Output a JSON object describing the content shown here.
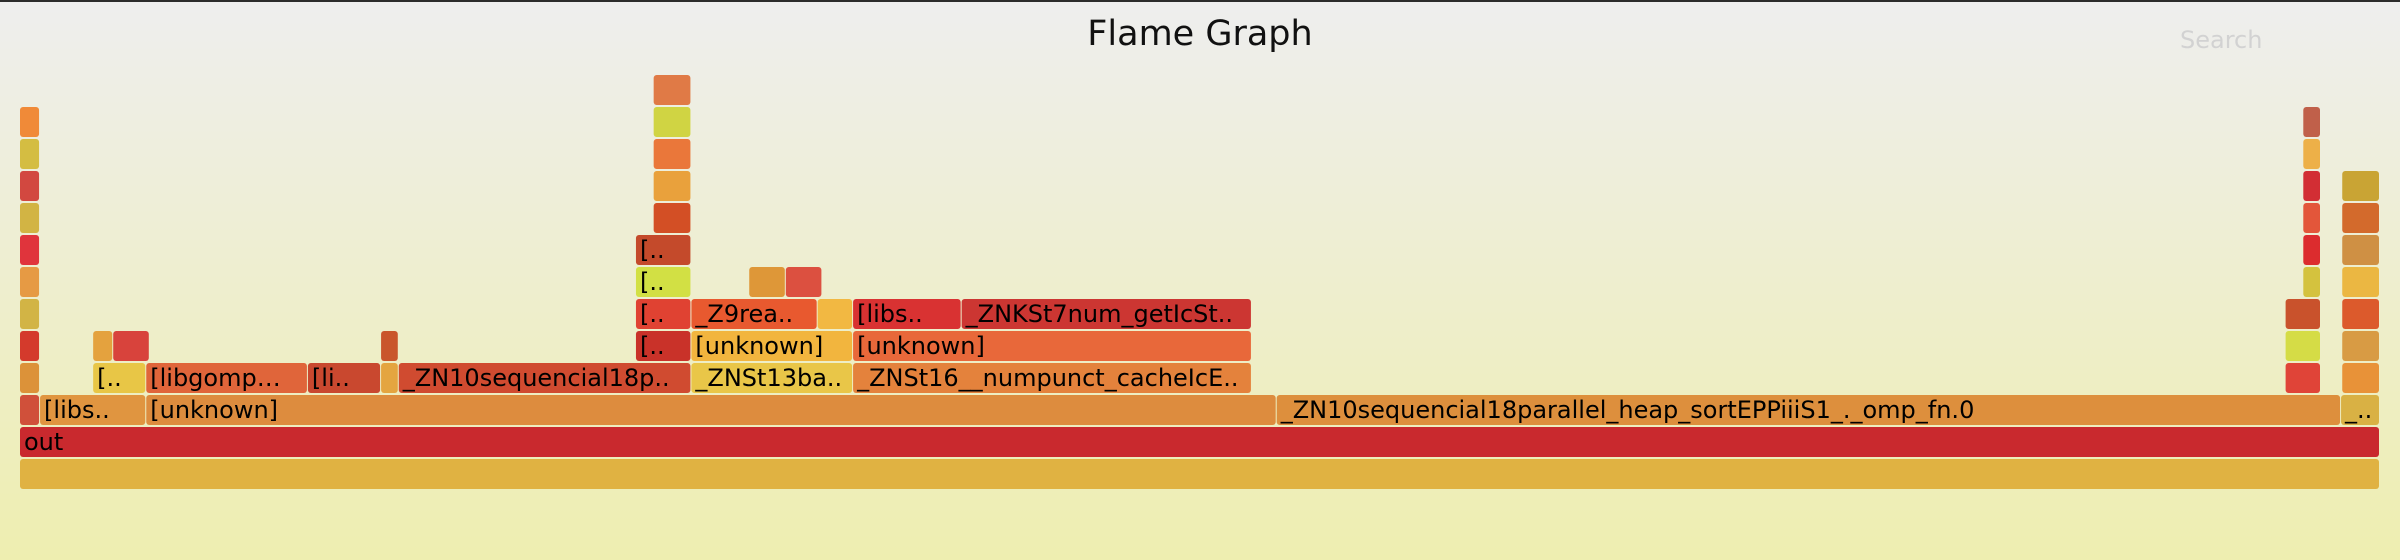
{
  "title": "Flame Graph",
  "search_label": "Search",
  "chart_data": {
    "type": "flame",
    "frames": [
      {
        "label": "",
        "depth": 0,
        "start": 0,
        "width": 100,
        "color": "#e0b242"
      },
      {
        "label": "out",
        "depth": 1,
        "start": 0,
        "width": 100,
        "color": "#c9292e"
      },
      {
        "label": "",
        "depth": 2,
        "start": 0,
        "width": 0.85,
        "color": "#d0503a"
      },
      {
        "label": "[libs..",
        "depth": 2,
        "start": 0.85,
        "width": 4.5,
        "color": "#e09540"
      },
      {
        "label": "[unknown]",
        "depth": 2,
        "start": 5.35,
        "width": 47.9,
        "color": "#dd8c3e"
      },
      {
        "label": "_ZN10sequencial18parallel_heap_sortEPPiiiS1_._omp_fn.0",
        "depth": 2,
        "start": 53.25,
        "width": 45.1,
        "color": "#dd8f3d"
      },
      {
        "label": "_..",
        "depth": 2,
        "start": 98.35,
        "width": 1.65,
        "color": "#d9b144"
      },
      {
        "label": "",
        "depth": 3,
        "start": 0,
        "width": 0.85,
        "color": "#dc9239"
      },
      {
        "label": "[..",
        "depth": 3,
        "start": 3.1,
        "width": 2.25,
        "color": "#e8c646"
      },
      {
        "label": "[libgomp…",
        "depth": 3,
        "start": 5.35,
        "width": 6.85,
        "color": "#e0653a"
      },
      {
        "label": "[li..",
        "depth": 3,
        "start": 12.2,
        "width": 3.1,
        "color": "#c9482f"
      },
      {
        "label": "",
        "depth": 3,
        "start": 15.3,
        "width": 0.75,
        "color": "#e4a540"
      },
      {
        "label": "_ZN10sequencial18p..",
        "depth": 3,
        "start": 16.05,
        "width": 12.4,
        "color": "#d04b30"
      },
      {
        "label": "_ZNSt13ba..",
        "depth": 3,
        "start": 28.45,
        "width": 6.85,
        "color": "#e9c648"
      },
      {
        "label": "_ZNSt16__numpunct_cacheIcE..",
        "depth": 3,
        "start": 35.3,
        "width": 16.9,
        "color": "#e4823c"
      },
      {
        "label": "",
        "depth": 3,
        "start": 96.0,
        "width": 1.5,
        "color": "#e04438"
      },
      {
        "label": "",
        "depth": 3,
        "start": 98.4,
        "width": 1.6,
        "color": "#e89238"
      },
      {
        "label": "",
        "depth": 4,
        "start": 0,
        "width": 0.85,
        "color": "#d43a2c"
      },
      {
        "label": "",
        "depth": 4,
        "start": 3.1,
        "width": 0.85,
        "color": "#e4a23e"
      },
      {
        "label": "",
        "depth": 4,
        "start": 3.95,
        "width": 1.55,
        "color": "#d8433c"
      },
      {
        "label": "",
        "depth": 4,
        "start": 15.3,
        "width": 0.75,
        "color": "#c9562c"
      },
      {
        "label": "[..",
        "depth": 4,
        "start": 26.1,
        "width": 2.35,
        "color": "#c93229"
      },
      {
        "label": "[unknown]",
        "depth": 4,
        "start": 28.45,
        "width": 6.85,
        "color": "#f2b53e"
      },
      {
        "label": "[unknown]",
        "depth": 4,
        "start": 35.3,
        "width": 16.9,
        "color": "#e8683a"
      },
      {
        "label": "",
        "depth": 4,
        "start": 96.0,
        "width": 1.5,
        "color": "#d5dc46"
      },
      {
        "label": "",
        "depth": 4,
        "start": 98.4,
        "width": 1.6,
        "color": "#d89b44"
      },
      {
        "label": "",
        "depth": 5,
        "start": 0,
        "width": 0.85,
        "color": "#d2b445"
      },
      {
        "label": "[..",
        "depth": 5,
        "start": 26.1,
        "width": 2.35,
        "color": "#e04232"
      },
      {
        "label": "_Z9rea..",
        "depth": 5,
        "start": 28.45,
        "width": 5.35,
        "color": "#e8592f"
      },
      {
        "label": "",
        "depth": 5,
        "start": 33.8,
        "width": 1.5,
        "color": "#f2b842"
      },
      {
        "label": "[libs..",
        "depth": 5,
        "start": 35.3,
        "width": 4.6,
        "color": "#d93232"
      },
      {
        "label": "_ZNKSt7num_getIcSt..",
        "depth": 5,
        "start": 39.9,
        "width": 12.3,
        "color": "#cc3632"
      },
      {
        "label": "",
        "depth": 5,
        "start": 96.0,
        "width": 1.5,
        "color": "#c9522c"
      },
      {
        "label": "",
        "depth": 5,
        "start": 98.4,
        "width": 1.6,
        "color": "#dc5a2c"
      },
      {
        "label": "",
        "depth": 6,
        "start": 0,
        "width": 0.85,
        "color": "#e69a44"
      },
      {
        "label": "[..",
        "depth": 6,
        "start": 26.1,
        "width": 2.35,
        "color": "#d2e044"
      },
      {
        "label": "",
        "depth": 6,
        "start": 30.9,
        "width": 1.55,
        "color": "#de9738"
      },
      {
        "label": "",
        "depth": 6,
        "start": 32.45,
        "width": 1.55,
        "color": "#dc5040"
      },
      {
        "label": "",
        "depth": 6,
        "start": 96.75,
        "width": 0.75,
        "color": "#d4c23e"
      },
      {
        "label": "",
        "depth": 6,
        "start": 98.4,
        "width": 1.6,
        "color": "#ebb742"
      },
      {
        "label": "",
        "depth": 7,
        "start": 0,
        "width": 0.85,
        "color": "#e0343c"
      },
      {
        "label": "[..",
        "depth": 7,
        "start": 26.1,
        "width": 2.35,
        "color": "#c44a2b"
      },
      {
        "label": "",
        "depth": 7,
        "start": 96.75,
        "width": 0.75,
        "color": "#dc2c2e"
      },
      {
        "label": "",
        "depth": 7,
        "start": 98.4,
        "width": 1.6,
        "color": "#cf9044"
      },
      {
        "label": "",
        "depth": 8,
        "start": 0,
        "width": 0.85,
        "color": "#d2b444"
      },
      {
        "label": "",
        "depth": 8,
        "start": 26.85,
        "width": 1.6,
        "color": "#d34f25"
      },
      {
        "label": "",
        "depth": 8,
        "start": 96.75,
        "width": 0.75,
        "color": "#e3563a"
      },
      {
        "label": "",
        "depth": 8,
        "start": 98.4,
        "width": 1.6,
        "color": "#d36a2c"
      },
      {
        "label": "",
        "depth": 9,
        "start": 0,
        "width": 0.85,
        "color": "#d24840"
      },
      {
        "label": "",
        "depth": 9,
        "start": 26.85,
        "width": 1.6,
        "color": "#e9a13c"
      },
      {
        "label": "",
        "depth": 9,
        "start": 96.75,
        "width": 0.75,
        "color": "#d22e34"
      },
      {
        "label": "",
        "depth": 9,
        "start": 98.4,
        "width": 1.6,
        "color": "#c9a434"
      },
      {
        "label": "",
        "depth": 10,
        "start": 0,
        "width": 0.85,
        "color": "#d4bd42"
      },
      {
        "label": "",
        "depth": 10,
        "start": 26.85,
        "width": 1.6,
        "color": "#ea773a"
      },
      {
        "label": "",
        "depth": 10,
        "start": 96.75,
        "width": 0.75,
        "color": "#edb048"
      },
      {
        "label": "",
        "depth": 11,
        "start": 0,
        "width": 0.85,
        "color": "#f08a38"
      },
      {
        "label": "",
        "depth": 11,
        "start": 26.85,
        "width": 1.6,
        "color": "#d0d443"
      },
      {
        "label": "",
        "depth": 11,
        "start": 96.75,
        "width": 0.75,
        "color": "#c0604a"
      },
      {
        "label": "",
        "depth": 12,
        "start": 26.85,
        "width": 1.6,
        "color": "#e07a46"
      }
    ]
  }
}
